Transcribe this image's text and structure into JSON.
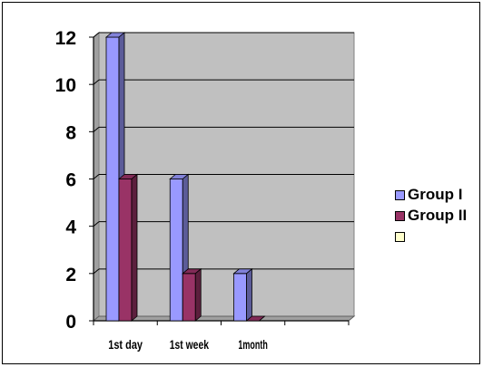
{
  "chart_data": {
    "type": "bar",
    "title": "",
    "xlabel": "",
    "ylabel": "",
    "categories": [
      "1st day",
      "1st week",
      "1month",
      ""
    ],
    "ylim": [
      0,
      12
    ],
    "yticks": [
      "0",
      "2",
      "4",
      "6",
      "8",
      "10",
      "12"
    ],
    "grid": true,
    "legend_position": "right",
    "series": [
      {
        "name": "Group I",
        "values": [
          12,
          6,
          2,
          null
        ],
        "color": "#9999ff"
      },
      {
        "name": "Group II",
        "values": [
          6,
          2,
          0,
          null
        ],
        "color": "#993366"
      },
      {
        "name": "",
        "values": [
          null,
          null,
          null,
          null
        ],
        "color": "#ffffcc"
      }
    ],
    "plot_background": "#c0c0c0"
  }
}
